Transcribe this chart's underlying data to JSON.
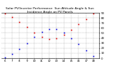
{
  "title": "Solar PV/Inverter Performance  Sun Altitude Angle & Sun Incidence Angle on PV Panels",
  "x_labels": [
    "6",
    "7",
    "8",
    "9",
    "10",
    "11",
    "12",
    "13",
    "14",
    "15",
    "16",
    "17",
    "18"
  ],
  "x_values": [
    6,
    7,
    8,
    9,
    10,
    11,
    12,
    13,
    14,
    15,
    16,
    17,
    18
  ],
  "altitude_y": [
    2,
    8,
    18,
    30,
    42,
    52,
    58,
    57,
    50,
    40,
    28,
    15,
    4
  ],
  "incidence_y": [
    88,
    82,
    72,
    62,
    50,
    42,
    38,
    40,
    46,
    56,
    68,
    78,
    88
  ],
  "altitude_color": "#0000dd",
  "incidence_color": "#dd0000",
  "ylim": [
    0,
    90
  ],
  "xlim": [
    5.5,
    18.8
  ],
  "background_color": "#ffffff",
  "grid_color": "#888888",
  "yticks": [
    0,
    10,
    20,
    30,
    40,
    50,
    60,
    70,
    80,
    90
  ],
  "marker_size": 1.2,
  "title_fontsize": 3.2,
  "tick_fontsize": 2.8,
  "legend_fontsize": 2.8
}
